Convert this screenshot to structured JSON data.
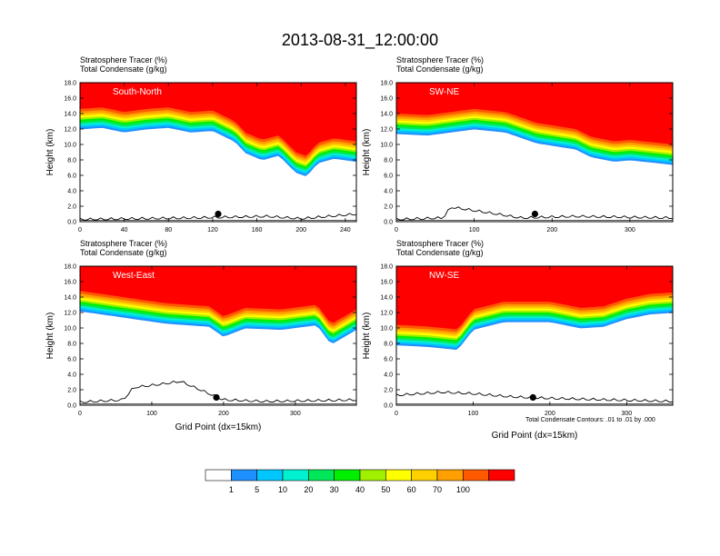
{
  "title": "2013-08-31_12:00:00",
  "contour_note": "Total Condensate Contours: .01 to .01 by .000",
  "colors": [
    "#ffffff",
    "#1e90ff",
    "#00c8ff",
    "#00f0d0",
    "#00e85a",
    "#00f000",
    "#a0f000",
    "#ffff00",
    "#ffd000",
    "#ffa000",
    "#ff5a00",
    "#ff0000"
  ],
  "colorbar_labels": [
    "1",
    "5",
    "10",
    "20",
    "30",
    "40",
    "50",
    "60",
    "70",
    "100"
  ],
  "chart_data": [
    {
      "type": "heatmap",
      "panel_label": "South-North",
      "line1": "Stratosphere Tracer   (%)",
      "line2": "Total Condensate   (g/kg)",
      "ylabel": "Height (km)",
      "xlabel": "",
      "xlim": [
        0,
        250
      ],
      "ylim": [
        0,
        18
      ],
      "xticks": [
        "0",
        "40",
        "80",
        "120",
        "160",
        "200",
        "240"
      ],
      "yticks": [
        "0.0",
        "2.0",
        "4.0",
        "6.0",
        "8.0",
        "10.0",
        "12.0",
        "14.0",
        "16.0",
        "18.0"
      ],
      "tropopause_km": [
        [
          0,
          14.6
        ],
        [
          20,
          14.8
        ],
        [
          40,
          14.2
        ],
        [
          60,
          14.6
        ],
        [
          80,
          14.8
        ],
        [
          100,
          14.2
        ],
        [
          120,
          14.4
        ],
        [
          140,
          13.0
        ],
        [
          150,
          11.5
        ],
        [
          165,
          10.6
        ],
        [
          180,
          11.2
        ],
        [
          195,
          9.0
        ],
        [
          205,
          8.5
        ],
        [
          215,
          10.2
        ],
        [
          230,
          10.8
        ],
        [
          250,
          10.4
        ]
      ],
      "terrain_km": [
        [
          0,
          0.2
        ],
        [
          100,
          0.4
        ],
        [
          170,
          0.6
        ],
        [
          200,
          0.3
        ],
        [
          250,
          0.9
        ]
      ],
      "marker": [
        125,
        1.0
      ]
    },
    {
      "type": "heatmap",
      "panel_label": "SW-NE",
      "line1": "Stratosphere Tracer   (%)",
      "line2": "Total Condensate   (g/kg)",
      "ylabel": "Height (km)",
      "xlabel": "",
      "xlim": [
        0,
        355
      ],
      "ylim": [
        0,
        18
      ],
      "xticks": [
        "0",
        "100",
        "200",
        "300"
      ],
      "yticks": [
        "0.0",
        "2.0",
        "4.0",
        "6.0",
        "8.0",
        "10.0",
        "12.0",
        "14.0",
        "16.0",
        "18.0"
      ],
      "tropopause_km": [
        [
          0,
          14.0
        ],
        [
          40,
          13.8
        ],
        [
          100,
          14.6
        ],
        [
          140,
          14.2
        ],
        [
          180,
          12.8
        ],
        [
          230,
          12.0
        ],
        [
          250,
          11.0
        ],
        [
          280,
          10.4
        ],
        [
          300,
          10.6
        ],
        [
          355,
          10.0
        ]
      ],
      "terrain_km": [
        [
          0,
          0.2
        ],
        [
          60,
          0.4
        ],
        [
          70,
          1.8
        ],
        [
          110,
          1.2
        ],
        [
          160,
          0.4
        ],
        [
          230,
          0.6
        ],
        [
          355,
          0.4
        ]
      ],
      "marker": [
        178,
        1.0
      ]
    },
    {
      "type": "heatmap",
      "panel_label": "West-East",
      "line1": "Stratosphere Tracer   (%)",
      "line2": "Total Condensate   (g/kg)",
      "ylabel": "Height (km)",
      "xlabel": "Grid Point (dx=15km)",
      "xlim": [
        0,
        385
      ],
      "ylim": [
        0,
        18
      ],
      "xticks": [
        "0",
        "100",
        "200",
        "300"
      ],
      "yticks": [
        "0.0",
        "2.0",
        "4.0",
        "6.0",
        "8.0",
        "10.0",
        "12.0",
        "14.0",
        "16.0",
        "18.0"
      ],
      "tropopause_km": [
        [
          0,
          14.8
        ],
        [
          60,
          14.0
        ],
        [
          120,
          13.2
        ],
        [
          180,
          12.8
        ],
        [
          200,
          11.5
        ],
        [
          230,
          12.6
        ],
        [
          280,
          12.4
        ],
        [
          330,
          13.0
        ],
        [
          350,
          10.5
        ],
        [
          385,
          12.4
        ]
      ],
      "terrain_km": [
        [
          0,
          0.3
        ],
        [
          60,
          0.6
        ],
        [
          75,
          2.2
        ],
        [
          110,
          2.6
        ],
        [
          140,
          3.0
        ],
        [
          170,
          1.8
        ],
        [
          200,
          0.6
        ],
        [
          260,
          0.4
        ],
        [
          385,
          0.6
        ]
      ],
      "marker": [
        190,
        1.0
      ]
    },
    {
      "type": "heatmap",
      "panel_label": "NW-SE",
      "line1": "Stratosphere Tracer   (%)",
      "line2": "Total Condensate   (g/kg)",
      "ylabel": "Height (km)",
      "xlabel": "Grid Point (dx=15km)",
      "xlim": [
        0,
        360
      ],
      "ylim": [
        0,
        18
      ],
      "xticks": [
        "0",
        "100",
        "200",
        "300"
      ],
      "yticks": [
        "0.0",
        "2.0",
        "4.0",
        "6.0",
        "8.0",
        "10.0",
        "12.0",
        "14.0",
        "16.0",
        "18.0"
      ],
      "tropopause_km": [
        [
          0,
          10.4
        ],
        [
          40,
          10.2
        ],
        [
          80,
          9.8
        ],
        [
          100,
          12.4
        ],
        [
          140,
          13.4
        ],
        [
          200,
          13.4
        ],
        [
          240,
          12.6
        ],
        [
          270,
          12.8
        ],
        [
          300,
          13.8
        ],
        [
          330,
          14.4
        ],
        [
          360,
          14.6
        ]
      ],
      "terrain_km": [
        [
          0,
          1.2
        ],
        [
          60,
          1.6
        ],
        [
          100,
          1.4
        ],
        [
          150,
          1.0
        ],
        [
          200,
          0.8
        ],
        [
          280,
          0.6
        ],
        [
          360,
          0.4
        ]
      ],
      "marker": [
        178,
        1.0
      ]
    }
  ]
}
